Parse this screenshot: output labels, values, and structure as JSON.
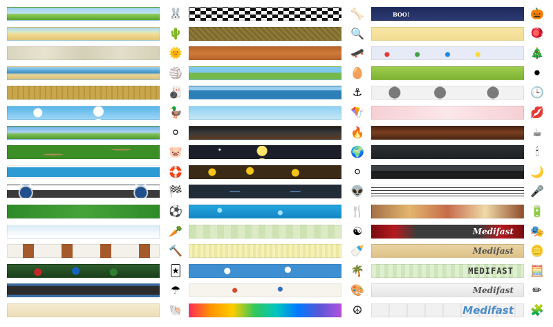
{
  "columns": [
    {
      "bars": [
        {
          "name": "rolling-hills",
          "bg": "linear-gradient(180deg,#9ed2ee 0%,#bfe2f2 45%,#8ccb55 55%,#59a42e 100%)"
        },
        {
          "name": "desert-dunes",
          "bg": "linear-gradient(180deg,#a9d8ef 0%,#d8e9c8 35%,#f1dc92 50%,#e1c576 100%)"
        },
        {
          "name": "blurred-stone",
          "bg": "linear-gradient(90deg,#d9d6bf,#e6e3cf,#d3d0b6,#e2dfca,#d6d2b8)"
        },
        {
          "name": "beach-shore",
          "bg": "linear-gradient(180deg,#9fd2ef 0%,#59a9d7 30%,#3e8fc6 45%,#e7d498 60%,#d9c07c 100%)"
        },
        {
          "name": "bowling-lane",
          "bg": "repeating-linear-gradient(90deg,#c8a64c 0 6px,#b8943c 6px 8px)"
        },
        {
          "name": "cloudy-sky",
          "bg": "radial-gradient(circle at 20% 50%,#ffffff 0 6px,transparent 7px),radial-gradient(circle at 60% 40%,#ffffff 0 7px,transparent 8px),linear-gradient(180deg,#58b6ea,#9bd4f4)"
        },
        {
          "name": "golf-course",
          "bg": "linear-gradient(180deg,#6fb0e6 0%,#a9d2f0 45%,#7fc25a 60%,#4e9a2e 100%)"
        },
        {
          "name": "grass-dirt",
          "bg": "radial-gradient(ellipse at 30% 70%,#a88a52 0 14px,transparent 15px),radial-gradient(ellipse at 75% 30%,#a88a52 0 14px,transparent 15px),#3c8f27"
        },
        {
          "name": "swimming-pool",
          "bg": "linear-gradient(180deg,#ffffff 0 10%,#2c9ad3 10% 90%,#ffffff 90%)"
        },
        {
          "name": "dashboard-gauges",
          "bg": "radial-gradient(circle at 12% 60%,#1f4f8c 0 8px,#cfd5dc 9px 10px,transparent 11px),radial-gradient(circle at 88% 60%,#1f4f8c 0 8px,#cfd5dc 9px 10px,transparent 11px),linear-gradient(180deg,#ffffff 0 40%,#3a3a3a 40%)"
        },
        {
          "name": "soccer-field",
          "bg": "linear-gradient(90deg,#2f8a28,#45a33a,#2f8a28)"
        },
        {
          "name": "snowy-field",
          "bg": "linear-gradient(180deg,#d9ecf8 0%,#eef6fb 50%,#ffffff 100%)"
        },
        {
          "name": "brick-doors",
          "bg": "repeating-linear-gradient(90deg,#f4f0ea 0 22px,#a45a2a 22px 38px,#f4f0ea 38px 56px)"
        },
        {
          "name": "casino-chips",
          "bg": "radial-gradient(circle at 20% 60%,#c62828 0 5px,transparent 6px),radial-gradient(circle at 45% 50%,#1565c0 0 5px,transparent 6px),radial-gradient(circle at 70% 60%,#2e7d32 0 5px,transparent 6px),linear-gradient(180deg,#2e5d2e,#1c3f1c)"
        },
        {
          "name": "highway-road",
          "bg": "linear-gradient(180deg,#3a6ea5 0 15%,#2b2b2b 15% 85%,#3a6ea5 85%)"
        },
        {
          "name": "sandy-shells",
          "bg": "linear-gradient(180deg,#f5ecd0,#ebdcb4)"
        }
      ]
    },
    {
      "bars": [
        {
          "name": "checkered-floor",
          "bg": "repeating-conic-gradient(#111 0 25%,#f2f2f2 0 50%) 0 0/16px 10px"
        },
        {
          "name": "bronze-texture",
          "bg": "repeating-linear-gradient(45deg,#7d6a2f 0 3px,#8f7a38 3px 6px)"
        },
        {
          "name": "wood-panel",
          "bg": "linear-gradient(180deg,#b8652c,#d07a3a 50%,#b8652c)"
        },
        {
          "name": "flower-meadow",
          "bg": "linear-gradient(180deg,#7ec8ee 0 45%,#74b94a 45%)"
        },
        {
          "name": "ocean-ship",
          "bg": "linear-gradient(180deg,#9ccfee 0 30%,#2d7fb8 30% 100%)"
        },
        {
          "name": "kite-sky",
          "bg": "linear-gradient(180deg,#8fd0f2,#c4e6f6)"
        },
        {
          "name": "campfire-wood",
          "bg": "linear-gradient(180deg,#1c1c1c,#3a3a3a 50%,#5a3b1f)"
        },
        {
          "name": "night-sun",
          "bg": "radial-gradient(circle at 48% 40%,#ffe56b 0 7px,transparent 8px),radial-gradient(circle at 20% 30%,#ffffff 0 1px,transparent 2px),#1b1f2a"
        },
        {
          "name": "gold-coins",
          "bg": "radial-gradient(circle at 15% 50%,#f5c518 0 5px,transparent 6px),radial-gradient(circle at 40% 40%,#f5c518 0 5px,transparent 6px),radial-gradient(circle at 70% 55%,#f5c518 0 5px,transparent 6px),#3b2a16"
        },
        {
          "name": "ufo-night",
          "bg": "radial-gradient(ellipse at 30% 50%,#6fb8e6 0 8px,transparent 9px),radial-gradient(ellipse at 70% 50%,#6fb8e6 0 8px,transparent 9px),#222c38"
        },
        {
          "name": "water-bubbles",
          "bg": "radial-gradient(circle at 20% 40%,#9fe0f8 0 3px,transparent 4px),radial-gradient(circle at 60% 60%,#9fe0f8 0 3px,transparent 4px),linear-gradient(180deg,#25a6dd,#1486c5)"
        },
        {
          "name": "green-squares",
          "bg": "repeating-linear-gradient(90deg,#cfe2b4 0 10px,#dcebc6 10px 20px)"
        },
        {
          "name": "yellow-plaid",
          "bg": "repeating-linear-gradient(90deg,#f5f1b8 0 4px,#ece7a2 4px 8px)"
        },
        {
          "name": "blue-floral",
          "bg": "radial-gradient(circle at 25% 50%,#ffffff 0 4px,transparent 5px),radial-gradient(circle at 65% 40%,#ffffff 0 4px,transparent 5px),#3d8fd1"
        },
        {
          "name": "paint-splatter",
          "bg": "radial-gradient(circle at 30% 50%,#d6452c 0 3px,transparent 4px),radial-gradient(circle at 60% 40%,#2f6ec1 0 3px,transparent 4px),#f7f4ee"
        },
        {
          "name": "rainbow-equalizer",
          "bg": "linear-gradient(90deg,#ff2d55,#ff9500,#ffcc00,#34c759,#00c7be,#007aff,#5856d6,#af52de)"
        }
      ]
    },
    {
      "bars": [
        {
          "name": "spooky-night",
          "bg": "linear-gradient(180deg,#1e2a5a,#2b3a73)",
          "text": "BOO!",
          "text_style": "boo"
        },
        {
          "name": "parchment",
          "bg": "linear-gradient(180deg,#f7e6a6,#f2dc92)"
        },
        {
          "name": "string-lights",
          "bg": "radial-gradient(circle at 10% 60%,#e53935 0 3px,transparent 4px),radial-gradient(circle at 30% 60%,#43a047 0 3px,transparent 4px),radial-gradient(circle at 50% 60%,#1e88e5 0 3px,transparent 4px),radial-gradient(circle at 70% 60%,#fdd835 0 3px,transparent 4px),#e7eaf7"
        },
        {
          "name": "yoga-poses",
          "bg": "linear-gradient(180deg,#9ccc4a,#7fb236)"
        },
        {
          "name": "clock-faces",
          "bg": "radial-gradient(circle at 15% 50%,#7a7a7a 0 8px,transparent 9px),radial-gradient(circle at 45% 50%,#7a7a7a 0 8px,transparent 9px),radial-gradient(circle at 80% 50%,#7a7a7a 0 8px,transparent 9px),#f2f2f2"
        },
        {
          "name": "lipstick-kisses",
          "bg": "linear-gradient(90deg,#f6d0d4,#fbe7ea,#f6d0d4)"
        },
        {
          "name": "coffee-beans",
          "bg": "linear-gradient(180deg,#4a2513,#7a3f1f 50%,#4a2513)"
        },
        {
          "name": "candle-glow",
          "bg": "linear-gradient(180deg,#2c3033,#1e2224)"
        },
        {
          "name": "city-skyline",
          "bg": "linear-gradient(180deg,#3b3f44 0 40%,#1e1e1e 40%)"
        },
        {
          "name": "music-staff",
          "bg": "repeating-linear-gradient(180deg,#ffffff 0 3px,#333 3px 4px)"
        },
        {
          "name": "food-collage",
          "bg": "linear-gradient(90deg,#a47148,#e3b66e,#c66b4a,#f0d9a8,#8f4e2b)"
        },
        {
          "name": "theater-curtain",
          "bg": "linear-gradient(90deg,#7a0d10,#b51a1f,#3b3b3b 30%,#3b3b3b 70%,#b51a1f,#7a0d10)",
          "text": "Medifast",
          "text_style": "light"
        },
        {
          "name": "aged-paper",
          "bg": "linear-gradient(180deg,#e9d3a4,#dec288)",
          "text": "Medifast",
          "text_style": "dark"
        },
        {
          "name": "calculator-lcd",
          "bg": "repeating-linear-gradient(90deg,#dff0d0 0 6px,#cfe5bd 6px 12px)",
          "text": "MEDIFAST",
          "text_style": "mono"
        },
        {
          "name": "notebook-paper",
          "bg": "linear-gradient(180deg,#f4f4f4,#e6e6e6)",
          "text": "Medifast",
          "text_style": "dark"
        },
        {
          "name": "puzzle-pieces",
          "bg": "repeating-linear-gradient(90deg,#f1f1f1 0 24px,#e4e4e4 24px 26px)",
          "text": "Medifast",
          "text_style": "blue"
        }
      ]
    }
  ],
  "icon_columns": [
    {
      "icons": [
        {
          "name": "bunny-icon",
          "glyph": "🐰"
        },
        {
          "name": "cactus-icon",
          "glyph": "🌵"
        },
        {
          "name": "sun-coin-icon",
          "glyph": "🌞"
        },
        {
          "name": "beach-ball-icon",
          "glyph": "🏐"
        },
        {
          "name": "bowling-ball-icon",
          "glyph": "🎳"
        },
        {
          "name": "rubber-duck-icon",
          "glyph": "🦆"
        },
        {
          "name": "golf-ball-icon",
          "glyph": "⚪"
        },
        {
          "name": "pig-face-icon",
          "glyph": "🐷"
        },
        {
          "name": "life-ring-icon",
          "glyph": "🛟"
        },
        {
          "name": "racing-flags-icon",
          "glyph": "🏁"
        },
        {
          "name": "soccer-ball-icon",
          "glyph": "⚽"
        },
        {
          "name": "carrot-icon",
          "glyph": "🥕"
        },
        {
          "name": "hammer-icon",
          "glyph": "🔨"
        },
        {
          "name": "playing-card-icon",
          "glyph": "🃏"
        },
        {
          "name": "umbrella-icon",
          "glyph": "☂"
        },
        {
          "name": "seashell-icon",
          "glyph": "🐚"
        }
      ]
    },
    {
      "icons": [
        {
          "name": "bone-icon",
          "glyph": "🦴"
        },
        {
          "name": "magnifier-icon",
          "glyph": "🔍"
        },
        {
          "name": "skateboard-icon",
          "glyph": "🛹"
        },
        {
          "name": "easter-egg-icon",
          "glyph": "🥚"
        },
        {
          "name": "anchor-icon",
          "glyph": "⚓"
        },
        {
          "name": "kite-icon",
          "glyph": "🪁"
        },
        {
          "name": "campfire-icon",
          "glyph": "🔥"
        },
        {
          "name": "globe-icon",
          "glyph": "🌍"
        },
        {
          "name": "pearl-icon",
          "glyph": "⚪"
        },
        {
          "name": "alien-icon",
          "glyph": "👽"
        },
        {
          "name": "cutlery-icon",
          "glyph": "🍴"
        },
        {
          "name": "yin-yang-icon",
          "glyph": "☯"
        },
        {
          "name": "rattle-icon",
          "glyph": "🍼"
        },
        {
          "name": "palm-tree-icon",
          "glyph": "🌴"
        },
        {
          "name": "paint-palette-icon",
          "glyph": "🎨"
        },
        {
          "name": "peace-sign-icon",
          "glyph": "☮"
        }
      ]
    },
    {
      "icons": [
        {
          "name": "pumpkin-icon",
          "glyph": "🎃"
        },
        {
          "name": "dreidel-icon",
          "glyph": "🪀"
        },
        {
          "name": "christmas-tree-icon",
          "glyph": "🎄"
        },
        {
          "name": "yoga-balls-icon",
          "glyph": "⚫"
        },
        {
          "name": "clock-icon",
          "glyph": "🕒"
        },
        {
          "name": "lips-icon",
          "glyph": "💋"
        },
        {
          "name": "coffee-cup-icon",
          "glyph": "☕"
        },
        {
          "name": "candle-icon",
          "glyph": "🕯"
        },
        {
          "name": "crescent-moon-icon",
          "glyph": "🌙"
        },
        {
          "name": "microphone-icon",
          "glyph": "🎤"
        },
        {
          "name": "battery-icon",
          "glyph": "🔋"
        },
        {
          "name": "theater-masks-icon",
          "glyph": "🎭"
        },
        {
          "name": "gold-coin-icon",
          "glyph": "🪙"
        },
        {
          "name": "calculator-icon",
          "glyph": "🧮"
        },
        {
          "name": "pencil-icon",
          "glyph": "✏"
        },
        {
          "name": "puzzle-piece-icon",
          "glyph": "🧩"
        }
      ]
    }
  ]
}
